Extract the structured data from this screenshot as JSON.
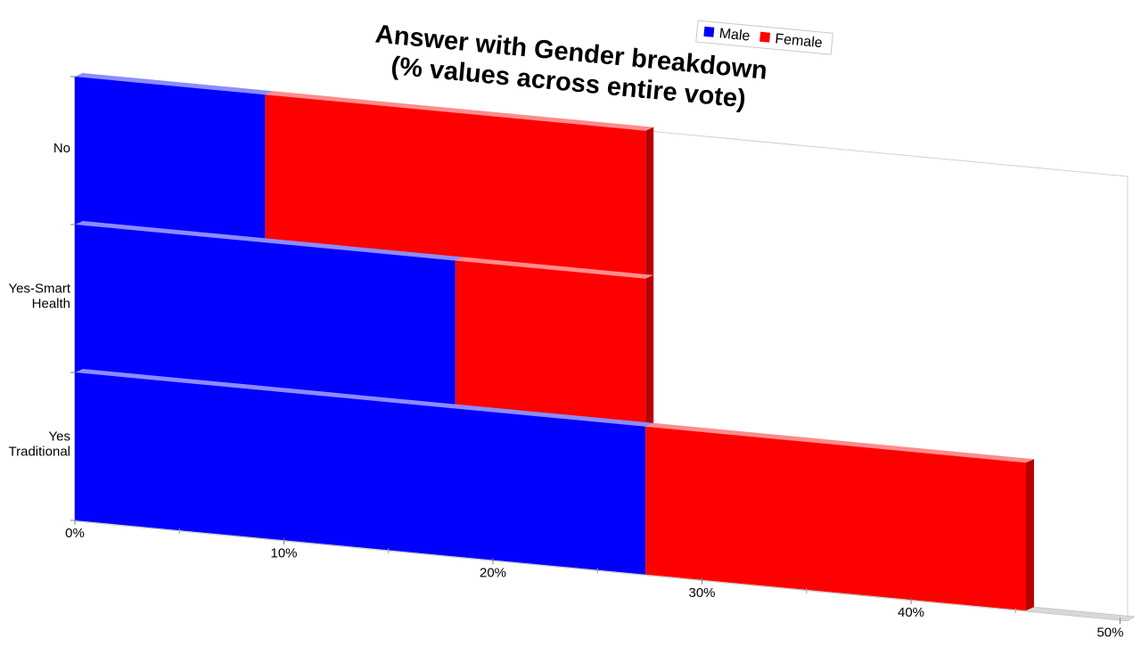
{
  "chart_data": {
    "type": "bar",
    "orientation": "horizontal",
    "stacked": true,
    "title": "Answer with Gender breakdown\n(% values across entire vote)",
    "categories": [
      "No",
      "Yes-Smart\nHealth",
      "Yes\nTraditional"
    ],
    "series": [
      {
        "name": "Male",
        "color": "#0000ff",
        "values": [
          9.1,
          18.2,
          27.3
        ]
      },
      {
        "name": "Female",
        "color": "#ff0000",
        "values": [
          18.2,
          9.1,
          18.2
        ]
      }
    ],
    "x_ticks": [
      "0%",
      "10%",
      "20%",
      "30%",
      "40%",
      "50%"
    ],
    "xlim": [
      0,
      50
    ],
    "legend": "top",
    "grid": false,
    "style": "3d-perspective"
  }
}
